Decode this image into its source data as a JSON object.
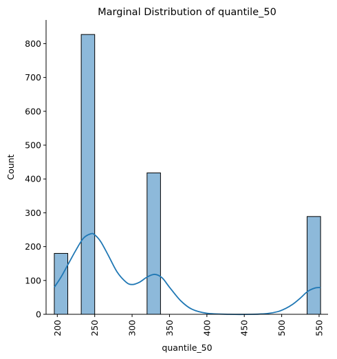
{
  "chart_data": {
    "type": "bar",
    "title": "Marginal Distribution of quantile_50",
    "xlabel": "quantile_50",
    "ylabel": "Count",
    "xlim": [
      185,
      562
    ],
    "ylim": [
      0,
      870
    ],
    "xticks": [
      200,
      250,
      300,
      350,
      400,
      450,
      500,
      550
    ],
    "yticks": [
      0,
      100,
      200,
      300,
      400,
      500,
      600,
      700,
      800
    ],
    "bins": [
      {
        "x0": 196,
        "x1": 214,
        "count": 180
      },
      {
        "x0": 232,
        "x1": 250,
        "count": 827
      },
      {
        "x0": 320,
        "x1": 338,
        "count": 418
      },
      {
        "x0": 534,
        "x1": 552,
        "count": 289
      }
    ],
    "kde": {
      "x": [
        196,
        205,
        215,
        225,
        235,
        245,
        250,
        258,
        268,
        280,
        292,
        300,
        310,
        320,
        330,
        340,
        350,
        365,
        380,
        400,
        430,
        460,
        480,
        495,
        505,
        515,
        525,
        535,
        545,
        552
      ],
      "y": [
        80,
        110,
        150,
        190,
        225,
        238,
        235,
        215,
        175,
        125,
        95,
        88,
        95,
        110,
        118,
        108,
        80,
        40,
        15,
        3,
        0,
        0,
        2,
        8,
        17,
        30,
        48,
        68,
        78,
        79
      ]
    },
    "bar_color": "#8db9da",
    "bar_edge_color": "#000000",
    "kde_color": "#1f77b4",
    "grid": false,
    "legend": "none"
  }
}
